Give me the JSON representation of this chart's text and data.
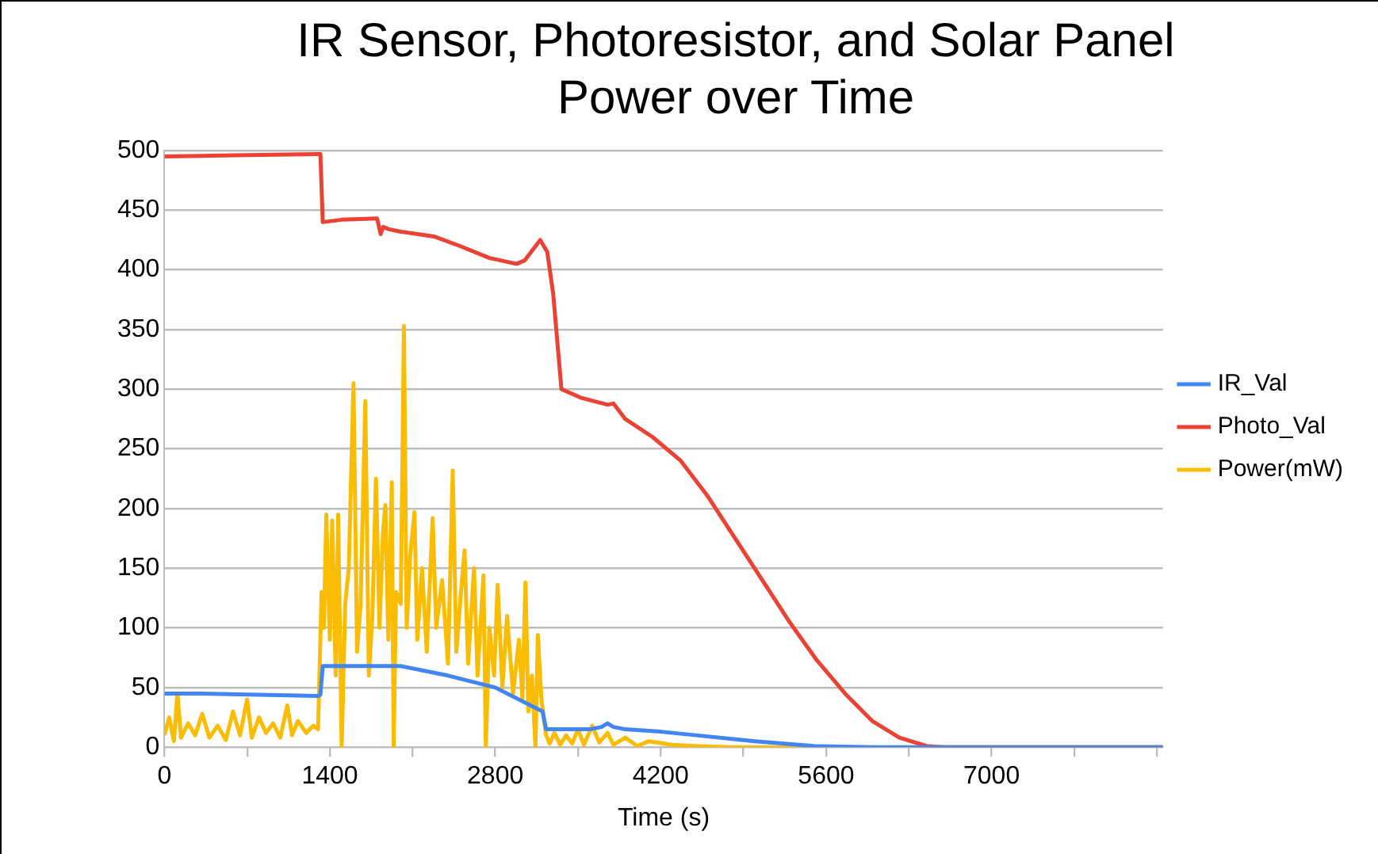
{
  "chart_data": {
    "type": "line",
    "title": "IR Sensor, Photoresistor, and Solar Panel\nPower over Time",
    "xlabel": "Time (s)",
    "xlim": [
      0,
      8450
    ],
    "xticks": [
      0,
      {
        "value": 700,
        "label": null
      },
      1400,
      {
        "value": 2100,
        "label": null
      },
      2800,
      {
        "value": 3500,
        "label": null
      },
      4200,
      {
        "value": 4900,
        "label": null
      },
      5600,
      {
        "value": 6300,
        "label": null
      },
      7000,
      {
        "value": 7700,
        "label": null
      },
      {
        "value": 8400,
        "label": null
      }
    ],
    "ylim": [
      0,
      500
    ],
    "yticks": [
      0,
      50,
      100,
      150,
      200,
      250,
      300,
      350,
      400,
      450,
      500
    ],
    "grid": "y",
    "legend": "right",
    "marker": "none",
    "line_style": "solid",
    "series": [
      {
        "name": "IR_Val",
        "color": "#4285f4",
        "x": [
          0,
          300,
          800,
          1300,
          1320,
          1340,
          1600,
          2000,
          2400,
          2800,
          3100,
          3200,
          3230,
          3300,
          3600,
          3700,
          3750,
          3800,
          3900,
          4200,
          4500,
          5000,
          5500,
          6000,
          8450
        ],
        "values": [
          45,
          45,
          44,
          43,
          44,
          68,
          68,
          68,
          60,
          50,
          35,
          30,
          15,
          15,
          15,
          17,
          20,
          17,
          15,
          13,
          10,
          5,
          1,
          0,
          0
        ]
      },
      {
        "name": "Photo_Val",
        "color": "#ea4335",
        "x": [
          0,
          600,
          1300,
          1320,
          1340,
          1500,
          1800,
          1830,
          1850,
          1900,
          2000,
          2280,
          2500,
          2750,
          2980,
          3050,
          3180,
          3240,
          3290,
          3360,
          3520,
          3750,
          3800,
          3900,
          4130,
          4370,
          4600,
          4830,
          5060,
          5290,
          5520,
          5760,
          5990,
          6220,
          6450,
          6600,
          8450
        ],
        "values": [
          495,
          496,
          497,
          497,
          440,
          442,
          443,
          430,
          436,
          434,
          432,
          428,
          420,
          410,
          405,
          408,
          425,
          415,
          380,
          300,
          293,
          287,
          288,
          275,
          260,
          240,
          210,
          175,
          140,
          105,
          73,
          45,
          22,
          8,
          1,
          0,
          0
        ]
      },
      {
        "name": "Power(mW)",
        "color": "#fbbc04",
        "x": [
          0,
          40,
          80,
          110,
          140,
          200,
          260,
          320,
          380,
          450,
          520,
          580,
          640,
          700,
          740,
          800,
          860,
          920,
          980,
          1040,
          1080,
          1130,
          1200,
          1260,
          1300,
          1330,
          1350,
          1370,
          1400,
          1420,
          1450,
          1470,
          1500,
          1530,
          1560,
          1600,
          1630,
          1660,
          1700,
          1730,
          1760,
          1790,
          1820,
          1850,
          1870,
          1895,
          1924,
          1940,
          1960,
          2000,
          2027,
          2050,
          2080,
          2116,
          2140,
          2180,
          2220,
          2270,
          2300,
          2350,
          2400,
          2440,
          2470,
          2510,
          2540,
          2570,
          2620,
          2650,
          2700,
          2720,
          2750,
          2790,
          2820,
          2860,
          2900,
          2950,
          3000,
          3030,
          3055,
          3080,
          3110,
          3140,
          3160,
          3190,
          3230,
          3260,
          3300,
          3350,
          3400,
          3450,
          3500,
          3550,
          3620,
          3680,
          3750,
          3800,
          3900,
          4000,
          4100,
          4300,
          4500,
          4800,
          8450
        ],
        "values": [
          10,
          25,
          5,
          45,
          8,
          20,
          10,
          28,
          8,
          18,
          6,
          30,
          10,
          40,
          8,
          25,
          12,
          20,
          8,
          35,
          10,
          22,
          12,
          18,
          15,
          130,
          100,
          195,
          90,
          190,
          60,
          195,
          0,
          120,
          150,
          305,
          80,
          120,
          290,
          60,
          110,
          225,
          100,
          180,
          203,
          90,
          222,
          0,
          130,
          120,
          353,
          100,
          160,
          197,
          90,
          150,
          80,
          192,
          100,
          140,
          70,
          232,
          80,
          130,
          165,
          70,
          150,
          60,
          144,
          0,
          100,
          60,
          136,
          50,
          110,
          45,
          90,
          40,
          138,
          30,
          60,
          0,
          94,
          40,
          10,
          3,
          12,
          2,
          10,
          3,
          15,
          2,
          18,
          4,
          12,
          2,
          8,
          1,
          5,
          2,
          1,
          0,
          0
        ]
      }
    ]
  }
}
